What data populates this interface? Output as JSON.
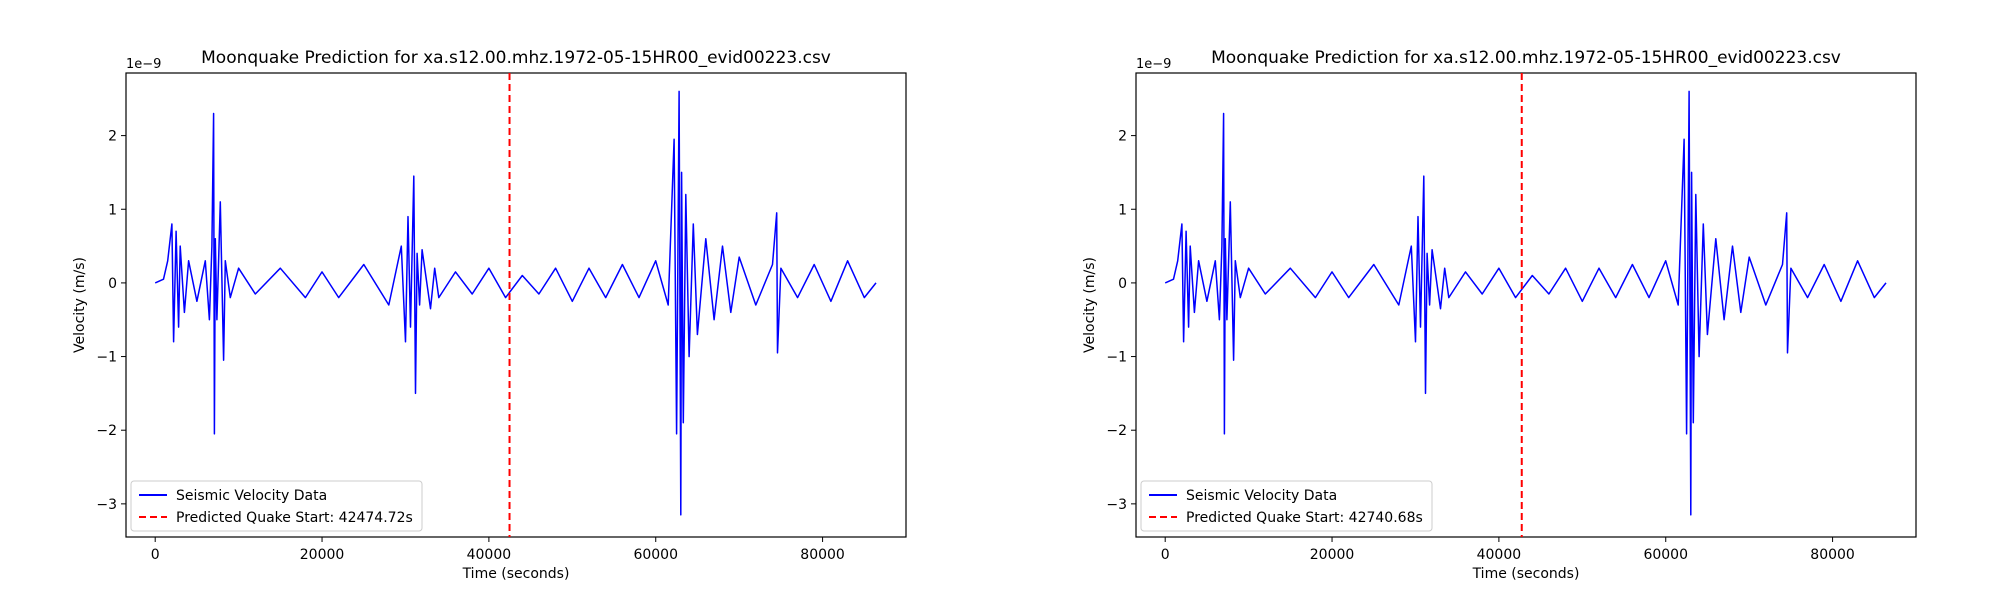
{
  "chart_data": [
    {
      "type": "line",
      "title": "Moonquake Prediction for xa.s12.00.mhz.1972-05-15HR00_evid00223.csv",
      "xlabel": "Time (seconds)",
      "ylabel": "Velocity (m/s)",
      "y_offset_label": "1e−9",
      "xlim": [
        -3500,
        90000
      ],
      "ylim": [
        -3.45,
        2.85
      ],
      "xticks": [
        0,
        20000,
        40000,
        60000,
        80000
      ],
      "xtick_labels": [
        "0",
        "20000",
        "40000",
        "60000",
        "80000"
      ],
      "yticks": [
        -3,
        -2,
        -1,
        0,
        1,
        2
      ],
      "ytick_labels": [
        "−3",
        "−2",
        "−1",
        "0",
        "1",
        "2"
      ],
      "grid": false,
      "legend_position": "lower-left",
      "series": [
        {
          "name": "Seismic Velocity Data",
          "color": "#0000ff",
          "x": [
            0,
            1000,
            1500,
            2000,
            2200,
            2500,
            2800,
            3000,
            3500,
            4000,
            5000,
            6000,
            6500,
            6800,
            7000,
            7100,
            7200,
            7400,
            7800,
            8200,
            8400,
            9000,
            10000,
            12000,
            15000,
            18000,
            20000,
            22000,
            25000,
            28000,
            29500,
            30000,
            30300,
            30600,
            31000,
            31200,
            31400,
            31700,
            32000,
            33000,
            33500,
            34000,
            36000,
            38000,
            40000,
            42000,
            44000,
            46000,
            48000,
            50000,
            52000,
            54000,
            56000,
            58000,
            60000,
            61500,
            62200,
            62500,
            62800,
            63000,
            63100,
            63300,
            63600,
            64000,
            64500,
            65000,
            66000,
            67000,
            68000,
            69000,
            70000,
            72000,
            74000,
            74500,
            74600,
            75000,
            77000,
            79000,
            81000,
            83000,
            85000,
            86400
          ],
          "y": [
            0,
            0.05,
            0.3,
            0.8,
            -0.8,
            0.7,
            -0.6,
            0.5,
            -0.4,
            0.3,
            -0.25,
            0.3,
            -0.5,
            0.5,
            2.3,
            -2.05,
            0.6,
            -0.5,
            1.1,
            -1.05,
            0.3,
            -0.2,
            0.2,
            -0.15,
            0.2,
            -0.2,
            0.15,
            -0.2,
            0.25,
            -0.3,
            0.5,
            -0.8,
            0.9,
            -0.6,
            1.45,
            -1.5,
            0.4,
            -0.3,
            0.45,
            -0.35,
            0.2,
            -0.2,
            0.15,
            -0.15,
            0.2,
            -0.2,
            0.1,
            -0.15,
            0.2,
            -0.25,
            0.2,
            -0.2,
            0.25,
            -0.2,
            0.3,
            -0.3,
            1.95,
            -2.05,
            2.6,
            -3.15,
            1.5,
            -1.9,
            1.2,
            -1.0,
            0.8,
            -0.7,
            0.6,
            -0.5,
            0.5,
            -0.4,
            0.35,
            -0.3,
            0.25,
            0.95,
            -0.95,
            0.2,
            -0.2,
            0.25,
            -0.25,
            0.3,
            -0.2,
            0
          ]
        },
        {
          "name": "Predicted Quake Start: 42474.72s",
          "color": "#ff0000",
          "style": "dashed",
          "x_value": 42474.72
        }
      ]
    },
    {
      "type": "line",
      "title": "Moonquake Prediction for xa.s12.00.mhz.1972-05-15HR00_evid00223.csv",
      "xlabel": "Time (seconds)",
      "ylabel": "Velocity (m/s)",
      "y_offset_label": "1e−9",
      "xlim": [
        -3500,
        90000
      ],
      "ylim": [
        -3.45,
        2.85
      ],
      "xticks": [
        0,
        20000,
        40000,
        60000,
        80000
      ],
      "xtick_labels": [
        "0",
        "20000",
        "40000",
        "60000",
        "80000"
      ],
      "yticks": [
        -3,
        -2,
        -1,
        0,
        1,
        2
      ],
      "ytick_labels": [
        "−3",
        "−2",
        "−1",
        "0",
        "1",
        "2"
      ],
      "grid": false,
      "legend_position": "lower-left",
      "series": [
        {
          "name": "Seismic Velocity Data",
          "color": "#0000ff",
          "x": [
            0,
            1000,
            1500,
            2000,
            2200,
            2500,
            2800,
            3000,
            3500,
            4000,
            5000,
            6000,
            6500,
            6800,
            7000,
            7100,
            7200,
            7400,
            7800,
            8200,
            8400,
            9000,
            10000,
            12000,
            15000,
            18000,
            20000,
            22000,
            25000,
            28000,
            29500,
            30000,
            30300,
            30600,
            31000,
            31200,
            31400,
            31700,
            32000,
            33000,
            33500,
            34000,
            36000,
            38000,
            40000,
            42000,
            44000,
            46000,
            48000,
            50000,
            52000,
            54000,
            56000,
            58000,
            60000,
            61500,
            62200,
            62500,
            62800,
            63000,
            63100,
            63300,
            63600,
            64000,
            64500,
            65000,
            66000,
            67000,
            68000,
            69000,
            70000,
            72000,
            74000,
            74500,
            74600,
            75000,
            77000,
            79000,
            81000,
            83000,
            85000,
            86400
          ],
          "y": [
            0,
            0.05,
            0.3,
            0.8,
            -0.8,
            0.7,
            -0.6,
            0.5,
            -0.4,
            0.3,
            -0.25,
            0.3,
            -0.5,
            0.5,
            2.3,
            -2.05,
            0.6,
            -0.5,
            1.1,
            -1.05,
            0.3,
            -0.2,
            0.2,
            -0.15,
            0.2,
            -0.2,
            0.15,
            -0.2,
            0.25,
            -0.3,
            0.5,
            -0.8,
            0.9,
            -0.6,
            1.45,
            -1.5,
            0.4,
            -0.3,
            0.45,
            -0.35,
            0.2,
            -0.2,
            0.15,
            -0.15,
            0.2,
            -0.2,
            0.1,
            -0.15,
            0.2,
            -0.25,
            0.2,
            -0.2,
            0.25,
            -0.2,
            0.3,
            -0.3,
            1.95,
            -2.05,
            2.6,
            -3.15,
            1.5,
            -1.9,
            1.2,
            -1.0,
            0.8,
            -0.7,
            0.6,
            -0.5,
            0.5,
            -0.4,
            0.35,
            -0.3,
            0.25,
            0.95,
            -0.95,
            0.2,
            -0.2,
            0.25,
            -0.25,
            0.3,
            -0.2,
            0
          ]
        },
        {
          "name": "Predicted Quake Start: 42740.68s",
          "color": "#ff0000",
          "style": "dashed",
          "x_value": 42740.68
        }
      ]
    }
  ]
}
